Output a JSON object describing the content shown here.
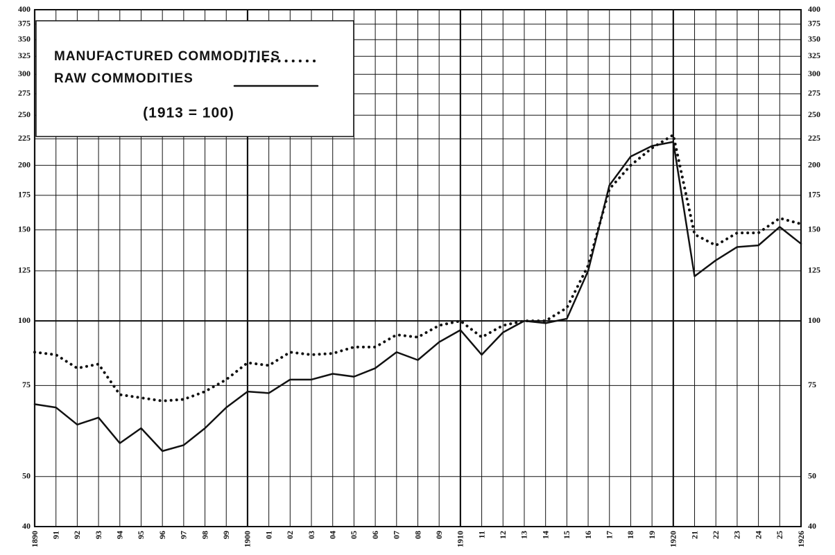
{
  "chart_data": {
    "type": "line",
    "subtitle": "(1913 = 100)",
    "categories": [
      "1890",
      "91",
      "92",
      "93",
      "94",
      "95",
      "96",
      "97",
      "98",
      "99",
      "1900",
      "01",
      "02",
      "03",
      "04",
      "05",
      "06",
      "07",
      "08",
      "09",
      "1910",
      "11",
      "12",
      "13",
      "14",
      "15",
      "16",
      "17",
      "18",
      "19",
      "1920",
      "21",
      "22",
      "23",
      "24",
      "25",
      "1926"
    ],
    "series": [
      {
        "name": "MANUFACTURED COMMODITIES",
        "color": "#111111",
        "dash": "dotted",
        "values": [
          87,
          86,
          81,
          82.5,
          72,
          71,
          70,
          70.5,
          73,
          77,
          83,
          82,
          87,
          86,
          86.5,
          89,
          89,
          94,
          93,
          98,
          100,
          93,
          98,
          100,
          100,
          106,
          128,
          180,
          200,
          216,
          229,
          147,
          140,
          148,
          148,
          158,
          154
        ]
      },
      {
        "name": "RAW COMMODITIES",
        "color": "#111111",
        "dash": "solid",
        "values": [
          69,
          68,
          63,
          65,
          58,
          62,
          56,
          57.5,
          62,
          68,
          73,
          72.5,
          77,
          77,
          79,
          78,
          81,
          87,
          84,
          91,
          96,
          86,
          95,
          100,
          99,
          101,
          125,
          183,
          208,
          218,
          222,
          122,
          131,
          139,
          140,
          152,
          141
        ]
      }
    ],
    "ylim": [
      40,
      400
    ],
    "log_y": true,
    "yticks": [
      40,
      50,
      75,
      100,
      125,
      150,
      175,
      200,
      225,
      250,
      275,
      300,
      325,
      350,
      375,
      400
    ],
    "grid": true,
    "legend": "upper left"
  }
}
